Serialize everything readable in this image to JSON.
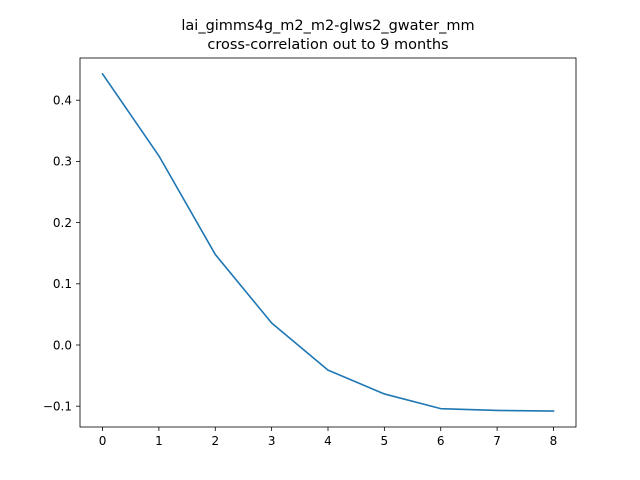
{
  "chart_data": {
    "type": "line",
    "title": "lai_gimms4g_m2_m2-glws2_gwater_mm",
    "subtitle": "cross-correlation out to 9 months",
    "xlabel": "",
    "ylabel": "",
    "x": [
      0,
      1,
      2,
      3,
      4,
      5,
      6,
      7,
      8
    ],
    "series": [
      {
        "values": [
          0.443,
          0.309,
          0.148,
          0.036,
          -0.041,
          -0.08,
          -0.104,
          -0.107,
          -0.108
        ],
        "color": "#1f77b4"
      }
    ],
    "xlim": [
      -0.4,
      8.4
    ],
    "ylim": [
      -0.134,
      0.469
    ],
    "xticks": [
      0,
      1,
      2,
      3,
      4,
      5,
      6,
      7,
      8
    ],
    "xtick_labels": [
      "0",
      "1",
      "2",
      "3",
      "4",
      "5",
      "6",
      "7",
      "8"
    ],
    "yticks": [
      -0.1,
      0.0,
      0.1,
      0.2,
      0.3,
      0.4
    ],
    "ytick_labels": [
      "−0.1",
      "0.0",
      "0.1",
      "0.2",
      "0.3",
      "0.4"
    ],
    "grid": false,
    "legend": "none"
  }
}
